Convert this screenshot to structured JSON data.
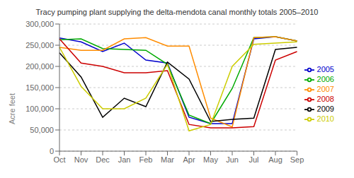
{
  "chart_data": {
    "type": "line",
    "title": "Tracy pumping plant supplying the delta-mendota canal monthly totals 2005–2010",
    "ylabel": "Acre feet",
    "categories": [
      "Oct",
      "Nov",
      "Dec",
      "Jan",
      "Feb",
      "Mar",
      "Apr",
      "May",
      "Jun",
      "Jul",
      "Aug",
      "Sep"
    ],
    "series": [
      {
        "name": "2005",
        "color": "#0000CC",
        "values": [
          267000,
          258000,
          235000,
          255000,
          215000,
          208000,
          80000,
          65000,
          65000,
          265000,
          270000,
          260000
        ]
      },
      {
        "name": "2006",
        "color": "#00AA00",
        "values": [
          263000,
          265000,
          242000,
          240000,
          238000,
          205000,
          85000,
          65000,
          148000,
          268000,
          270000,
          260000
        ]
      },
      {
        "name": "2007",
        "color": "#FF8C00",
        "values": [
          245000,
          238000,
          238000,
          265000,
          268000,
          248000,
          248000,
          78000,
          57000,
          268000,
          270000,
          260000
        ]
      },
      {
        "name": "2008",
        "color": "#CC0000",
        "values": [
          265000,
          208000,
          200000,
          185000,
          185000,
          190000,
          63000,
          55000,
          55000,
          58000,
          215000,
          235000
        ]
      },
      {
        "name": "2009",
        "color": "#000000",
        "values": [
          232000,
          175000,
          80000,
          125000,
          105000,
          210000,
          170000,
          70000,
          75000,
          78000,
          240000,
          245000
        ]
      },
      {
        "name": "2010",
        "color": "#CCCC00",
        "values": [
          245000,
          153000,
          100000,
          100000,
          125000,
          205000,
          48000,
          63000,
          200000,
          252000,
          255000,
          258000
        ]
      }
    ],
    "ylim": [
      0,
      300000
    ],
    "yticks": [
      0,
      {
        "value": 50000,
        "label": "50,000"
      },
      {
        "value": 100000,
        "label": "100,000"
      },
      {
        "value": 150000,
        "label": "150,000"
      },
      {
        "value": 200000,
        "label": "200,000"
      },
      {
        "value": 250000,
        "label": "250,000"
      },
      {
        "value": 300000,
        "label": "300,000"
      }
    ],
    "grid": true,
    "legend": "right"
  }
}
